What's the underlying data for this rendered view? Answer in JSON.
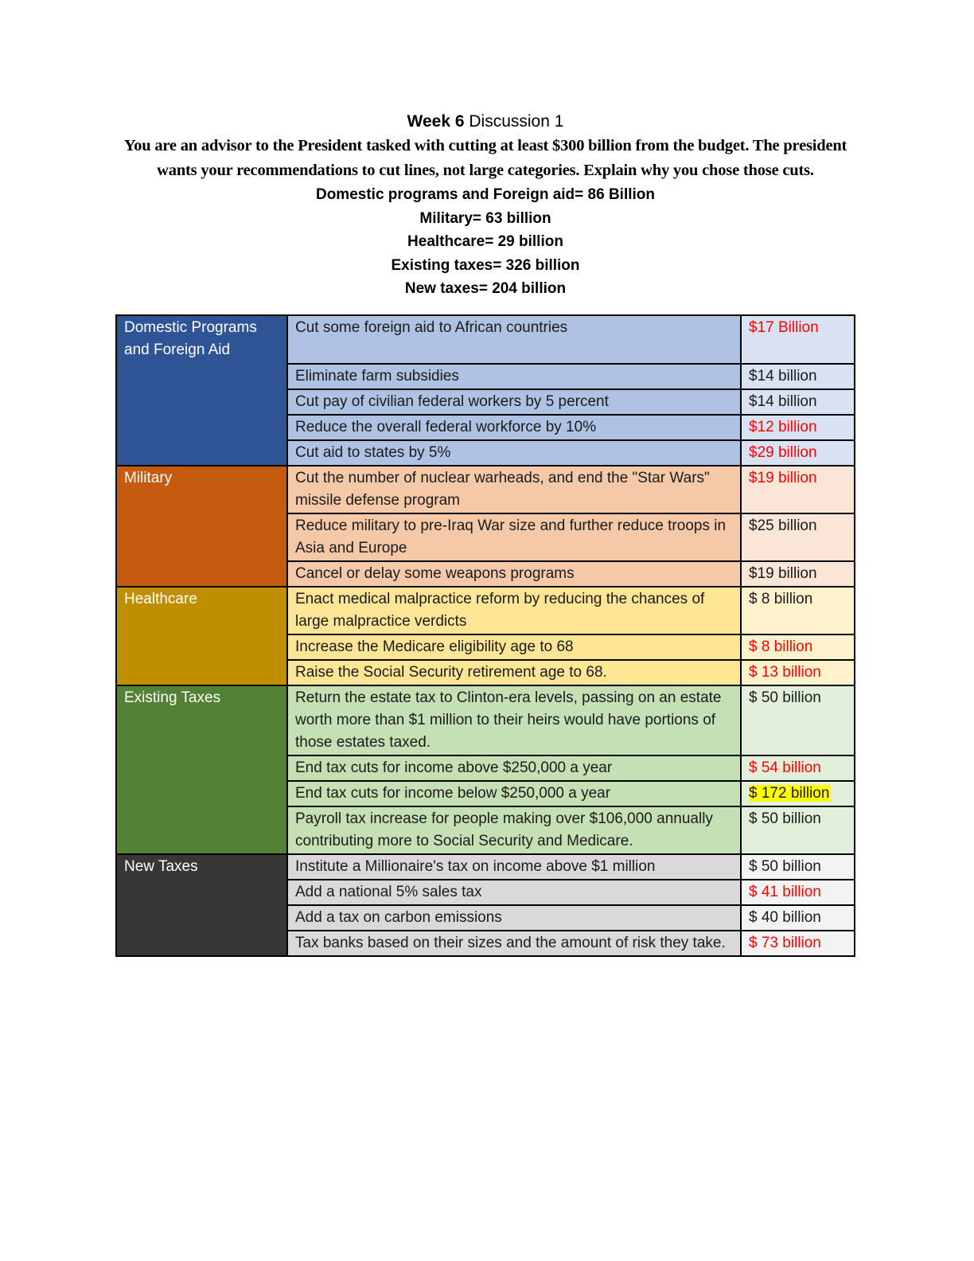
{
  "doc": {
    "title": {
      "bold": "Week 6",
      "rest": " Discussion 1"
    },
    "intro": "You are an advisor to the President tasked with cutting at least $300 billion from the budget. The president wants your recommendations to cut lines, not large categories. Explain why you chose those cuts.",
    "budget_summary": [
      "Domestic programs and Foreign aid= 86 Billion",
      "Military= 63 billion",
      "Healthcare= 29 billion",
      "Existing taxes= 326 billion",
      "New taxes= 204 billion"
    ]
  },
  "palette": {
    "red_text": "#FF0000",
    "highlight": "#FFFF00",
    "body_text": "#1b1b1b",
    "border": "#000000",
    "sections": {
      "blue": {
        "header": "#2F5496",
        "header_text": "#FFFFFF",
        "desc_bg": "#AFC2E3",
        "value_bg": "#D9E2F3"
      },
      "orange": {
        "header": "#C55A11",
        "header_text": "#FFFFFF",
        "desc_bg": "#F5C9A8",
        "value_bg": "#FBE5D6"
      },
      "gold": {
        "header": "#BF8F00",
        "header_text": "#FFFFFF",
        "desc_bg": "#FFE596",
        "value_bg": "#FFF2CC"
      },
      "green": {
        "header": "#538135",
        "header_text": "#FFFFFF",
        "desc_bg": "#C5E0B4",
        "value_bg": "#E2EFDA"
      },
      "dark": {
        "header": "#373737",
        "header_text": "#FFFFFF",
        "desc_bg": "#D9D9D9",
        "value_bg": "#F3F3F3"
      }
    }
  },
  "table": {
    "sections": [
      {
        "category": "Domestic Programs and Foreign Aid",
        "color_key": "blue",
        "rows": [
          {
            "desc": "Cut some foreign aid to African countries",
            "value": "$17 Billion",
            "red": true
          },
          {
            "desc": "Eliminate farm subsidies",
            "value": "$14 billion",
            "red": false
          },
          {
            "desc": "Cut pay of civilian federal workers by 5 percent",
            "value": "$14 billion",
            "red": false
          },
          {
            "desc": "Reduce the overall federal workforce by 10%",
            "value": "$12 billion",
            "red": true
          },
          {
            "desc": "Cut aid to states by 5%",
            "value": "$29 billion",
            "red": true
          }
        ]
      },
      {
        "category": "Military",
        "color_key": "orange",
        "rows": [
          {
            "desc": "Cut the number of nuclear warheads, and end the \"Star Wars\" missile defense program",
            "value": "$19 billion",
            "red": true
          },
          {
            "desc": "Reduce military to pre-Iraq War size and further reduce troops in Asia and Europe",
            "value": "$25 billion",
            "red": false
          },
          {
            "desc": "Cancel or delay some weapons programs",
            "value": "$19 billion",
            "red": false
          }
        ]
      },
      {
        "category": "Healthcare",
        "color_key": "gold",
        "rows": [
          {
            "desc": "Enact medical malpractice reform by reducing the chances of large malpractice verdicts",
            "value": "$ 8 billion",
            "red": false
          },
          {
            "desc": "Increase the Medicare eligibility age to 68",
            "value": "$ 8 billion",
            "red": true
          },
          {
            "desc": "Raise the Social Security retirement age to 68.",
            "value": "$ 13 billion",
            "red": true
          }
        ]
      },
      {
        "category": "Existing Taxes",
        "color_key": "green",
        "rows": [
          {
            "desc": "Return the estate tax to Clinton-era levels, passing on an estate worth more than $1 million to their heirs would have portions of those estates taxed.",
            "value": "$ 50 billion",
            "red": false
          },
          {
            "desc": "End tax cuts for income above $250,000 a year",
            "value": "$ 54 billion",
            "red": true
          },
          {
            "desc": "End tax cuts for income below $250,000 a year",
            "value": "$ 172 billion",
            "red": false,
            "highlight": true
          },
          {
            "desc": "Payroll tax increase for people making over $106,000 annually contributing more to Social Security and Medicare.",
            "value": "$ 50 billion",
            "red": false
          }
        ]
      },
      {
        "category": "New Taxes",
        "color_key": "dark",
        "rows": [
          {
            "desc": "Institute a Millionaire's tax on income above $1 million",
            "value": "$ 50 billion",
            "red": false
          },
          {
            "desc": "Add a national 5% sales tax",
            "value": "$ 41 billion",
            "red": true
          },
          {
            "desc": "Add a tax on carbon emissions",
            "value": "$ 40 billion",
            "red": false
          },
          {
            "desc": "Tax banks based on their sizes and the amount of risk they take.",
            "value": "$ 73 billion",
            "red": true
          }
        ]
      }
    ]
  }
}
